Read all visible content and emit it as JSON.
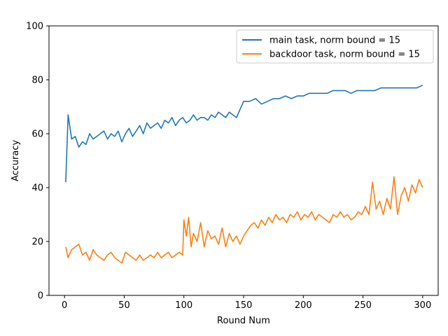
{
  "chart_data": {
    "type": "line",
    "title": "",
    "xlabel": "Round Num",
    "ylabel": "Accuracy",
    "xlim": [
      -13,
      313
    ],
    "ylim": [
      0,
      100
    ],
    "xticks": [
      0,
      50,
      100,
      150,
      200,
      250,
      300
    ],
    "yticks": [
      0,
      20,
      40,
      60,
      80,
      100
    ],
    "legend_position": "top-right",
    "grid": false,
    "series": [
      {
        "name": "main task, norm bound = 15",
        "color": "#1f77b4",
        "x": [
          1,
          3,
          6,
          9,
          12,
          15,
          18,
          21,
          24,
          27,
          30,
          33,
          36,
          39,
          42,
          45,
          48,
          51,
          54,
          57,
          60,
          63,
          66,
          69,
          72,
          75,
          78,
          81,
          84,
          87,
          90,
          93,
          96,
          99,
          102,
          105,
          108,
          111,
          114,
          117,
          120,
          123,
          126,
          129,
          132,
          135,
          138,
          141,
          144,
          147,
          150,
          155,
          160,
          165,
          170,
          175,
          180,
          185,
          190,
          195,
          200,
          205,
          210,
          215,
          220,
          225,
          230,
          235,
          240,
          245,
          250,
          255,
          260,
          265,
          270,
          275,
          280,
          285,
          290,
          295,
          300
        ],
        "values": [
          42,
          67,
          58,
          59,
          55,
          57,
          56,
          60,
          58,
          59,
          60,
          61,
          58,
          60,
          59,
          61,
          57,
          60,
          62,
          59,
          61,
          63,
          60,
          64,
          62,
          63,
          64,
          62,
          65,
          64,
          66,
          63,
          65,
          66,
          64,
          65,
          67,
          65,
          66,
          66,
          65,
          67,
          66,
          68,
          67,
          66,
          68,
          67,
          66,
          69,
          72,
          72,
          73,
          71,
          72,
          73,
          73,
          74,
          73,
          74,
          74,
          75,
          75,
          75,
          75,
          76,
          76,
          76,
          75,
          76,
          76,
          76,
          76,
          77,
          77,
          77,
          77,
          77,
          77,
          77,
          78
        ]
      },
      {
        "name": "backdoor task, norm bound = 15",
        "color": "#ff7f0e",
        "x": [
          1,
          3,
          6,
          9,
          12,
          15,
          18,
          21,
          24,
          27,
          30,
          33,
          36,
          39,
          42,
          45,
          48,
          51,
          54,
          57,
          60,
          63,
          66,
          69,
          72,
          75,
          78,
          81,
          84,
          87,
          90,
          93,
          96,
          99,
          100,
          102,
          104,
          106,
          108,
          111,
          114,
          117,
          120,
          123,
          126,
          129,
          132,
          135,
          138,
          141,
          144,
          147,
          150,
          153,
          156,
          159,
          162,
          165,
          168,
          171,
          174,
          177,
          180,
          183,
          186,
          189,
          192,
          195,
          198,
          201,
          204,
          207,
          210,
          213,
          216,
          219,
          222,
          225,
          228,
          231,
          234,
          237,
          240,
          243,
          246,
          249,
          252,
          255,
          258,
          261,
          264,
          267,
          270,
          273,
          276,
          279,
          282,
          285,
          288,
          291,
          294,
          297,
          300
        ],
        "values": [
          18,
          14,
          17,
          18,
          19,
          15,
          16,
          13,
          17,
          15,
          14,
          13,
          15,
          16,
          14,
          13,
          12,
          16,
          15,
          14,
          13,
          15,
          13,
          14,
          15,
          14,
          16,
          14,
          15,
          16,
          14,
          15,
          16,
          15,
          28,
          22,
          29,
          18,
          23,
          20,
          27,
          18,
          24,
          21,
          22,
          19,
          25,
          18,
          23,
          20,
          22,
          19,
          22,
          24,
          26,
          27,
          25,
          28,
          26,
          29,
          27,
          30,
          28,
          29,
          27,
          30,
          29,
          31,
          28,
          30,
          29,
          31,
          28,
          30,
          29,
          28,
          27,
          30,
          29,
          31,
          29,
          30,
          28,
          29,
          31,
          30,
          33,
          30,
          42,
          32,
          35,
          30,
          36,
          32,
          44,
          30,
          37,
          40,
          35,
          41,
          38,
          43,
          40
        ]
      }
    ]
  }
}
